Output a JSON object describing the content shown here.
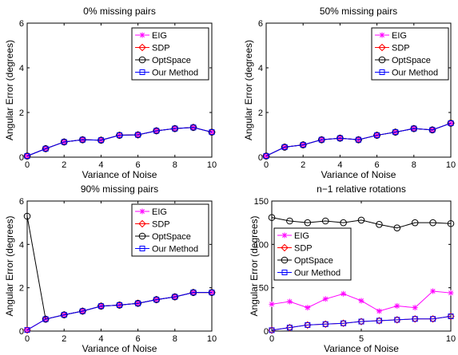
{
  "chart_data": [
    {
      "type": "line",
      "title": "0% missing pairs",
      "xlabel": "Variance of Noise",
      "ylabel": "Angular Error (degrees)",
      "xlim": [
        0,
        10
      ],
      "ylim": [
        0,
        6
      ],
      "xticks": [
        0,
        2,
        4,
        6,
        8,
        10
      ],
      "yticks": [
        0,
        2,
        4,
        6
      ],
      "legend_position": "top-right",
      "x": [
        0,
        1,
        2,
        3,
        4,
        5,
        6,
        7,
        8,
        9,
        10
      ],
      "series": [
        {
          "name": "EIG",
          "color": "#ff00ff",
          "marker": "star",
          "values": [
            0.05,
            0.38,
            0.68,
            0.78,
            0.76,
            0.98,
            1.0,
            1.18,
            1.28,
            1.33,
            1.12
          ]
        },
        {
          "name": "SDP",
          "color": "#ff0000",
          "marker": "diamond",
          "values": [
            0.05,
            0.38,
            0.68,
            0.78,
            0.76,
            0.98,
            1.0,
            1.18,
            1.28,
            1.33,
            1.12
          ]
        },
        {
          "name": "OptSpace",
          "color": "#000000",
          "marker": "circle",
          "values": [
            0.05,
            0.38,
            0.68,
            0.78,
            0.76,
            0.98,
            1.0,
            1.18,
            1.28,
            1.33,
            1.12
          ]
        },
        {
          "name": "Our Method",
          "color": "#0000ff",
          "marker": "square",
          "values": [
            0.05,
            0.38,
            0.68,
            0.78,
            0.76,
            0.98,
            1.0,
            1.18,
            1.28,
            1.33,
            1.12
          ]
        }
      ]
    },
    {
      "type": "line",
      "title": "50% missing pairs",
      "xlabel": "Variance of Noise",
      "ylabel": "Angular Error (degrees)",
      "xlim": [
        0,
        10
      ],
      "ylim": [
        0,
        6
      ],
      "xticks": [
        0,
        2,
        4,
        6,
        8,
        10
      ],
      "yticks": [
        0,
        2,
        4,
        6
      ],
      "legend_position": "top-right",
      "x": [
        0,
        1,
        2,
        3,
        4,
        5,
        6,
        7,
        8,
        9,
        10
      ],
      "series": [
        {
          "name": "EIG",
          "color": "#ff00ff",
          "marker": "star",
          "values": [
            0.05,
            0.45,
            0.55,
            0.78,
            0.85,
            0.78,
            0.98,
            1.12,
            1.28,
            1.22,
            1.52
          ]
        },
        {
          "name": "SDP",
          "color": "#ff0000",
          "marker": "diamond",
          "values": [
            0.05,
            0.45,
            0.55,
            0.78,
            0.85,
            0.78,
            0.98,
            1.12,
            1.28,
            1.22,
            1.52
          ]
        },
        {
          "name": "OptSpace",
          "color": "#000000",
          "marker": "circle",
          "values": [
            0.05,
            0.45,
            0.55,
            0.78,
            0.85,
            0.78,
            0.98,
            1.12,
            1.28,
            1.22,
            1.52
          ]
        },
        {
          "name": "Our Method",
          "color": "#0000ff",
          "marker": "square",
          "values": [
            0.05,
            0.45,
            0.55,
            0.78,
            0.85,
            0.78,
            0.98,
            1.12,
            1.28,
            1.22,
            1.52
          ]
        }
      ]
    },
    {
      "type": "line",
      "title": "90% missing pairs",
      "xlabel": "Variance of Noise",
      "ylabel": "Angular Error (degrees)",
      "xlim": [
        0,
        10
      ],
      "ylim": [
        0,
        6
      ],
      "xticks": [
        0,
        2,
        4,
        6,
        8,
        10
      ],
      "yticks": [
        0,
        2,
        4,
        6
      ],
      "legend_position": "top-right",
      "x": [
        0,
        1,
        2,
        3,
        4,
        5,
        6,
        7,
        8,
        9,
        10
      ],
      "series": [
        {
          "name": "EIG",
          "color": "#ff00ff",
          "marker": "star",
          "values": [
            0.05,
            0.55,
            0.75,
            0.92,
            1.15,
            1.2,
            1.28,
            1.45,
            1.58,
            1.78,
            1.78
          ]
        },
        {
          "name": "SDP",
          "color": "#ff0000",
          "marker": "diamond",
          "values": [
            0.05,
            0.55,
            0.75,
            0.92,
            1.15,
            1.2,
            1.28,
            1.45,
            1.58,
            1.78,
            1.78
          ]
        },
        {
          "name": "OptSpace",
          "color": "#000000",
          "marker": "circle",
          "values": [
            5.3,
            0.55,
            0.75,
            0.92,
            1.15,
            1.2,
            1.28,
            1.45,
            1.58,
            1.78,
            1.78
          ]
        },
        {
          "name": "Our Method",
          "color": "#0000ff",
          "marker": "square",
          "values": [
            0.05,
            0.55,
            0.75,
            0.92,
            1.15,
            1.2,
            1.28,
            1.45,
            1.58,
            1.78,
            1.78
          ]
        }
      ]
    },
    {
      "type": "line",
      "title": "n−1 relative rotations",
      "xlabel": "Variance of Noise",
      "ylabel": "Angular Error (degrees)",
      "xlim": [
        0,
        10
      ],
      "ylim": [
        0,
        150
      ],
      "xticks": [
        0,
        5,
        10
      ],
      "yticks": [
        0,
        50,
        100,
        150
      ],
      "legend_position": "middle-left",
      "x": [
        0,
        1,
        2,
        3,
        4,
        5,
        6,
        7,
        8,
        9,
        10
      ],
      "series": [
        {
          "name": "EIG",
          "color": "#ff00ff",
          "marker": "star",
          "values": [
            31,
            34,
            27,
            37,
            43,
            35,
            23,
            29,
            27,
            46,
            44
          ]
        },
        {
          "name": "SDP",
          "color": "#ff0000",
          "marker": "diamond",
          "values": [
            1,
            4,
            7,
            8,
            9,
            11,
            12,
            13,
            14,
            14,
            17
          ]
        },
        {
          "name": "OptSpace",
          "color": "#000000",
          "marker": "circle",
          "values": [
            131,
            127,
            125,
            127,
            125,
            128,
            123,
            119,
            125,
            125,
            124
          ]
        },
        {
          "name": "Our Method",
          "color": "#0000ff",
          "marker": "square",
          "values": [
            1,
            4,
            7,
            8,
            9,
            11,
            12,
            13,
            14,
            14,
            17
          ]
        }
      ]
    }
  ]
}
